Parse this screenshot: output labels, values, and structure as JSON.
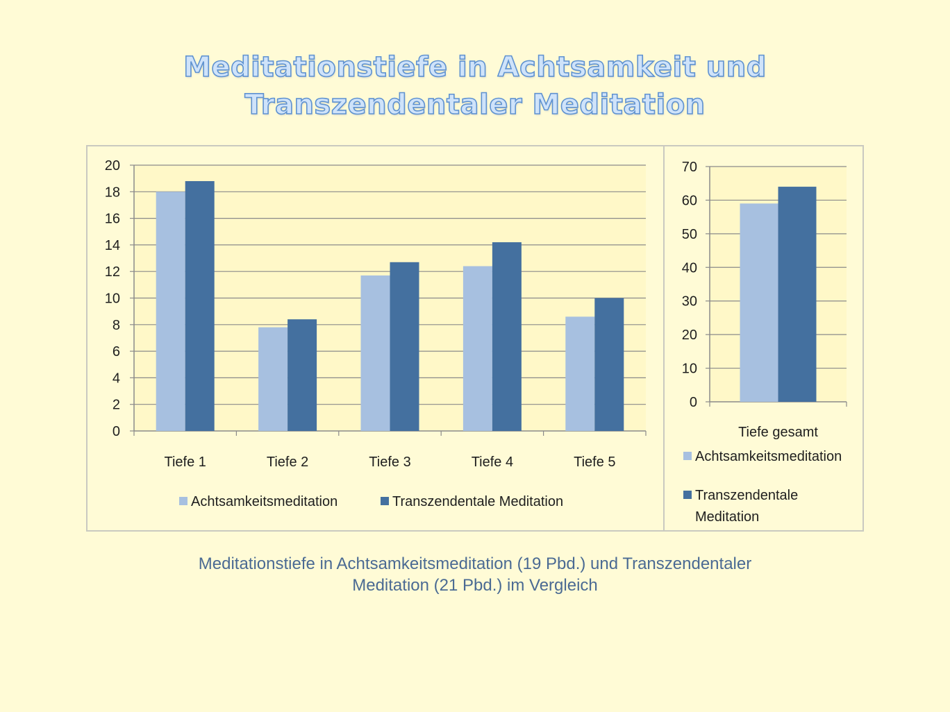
{
  "title": {
    "line1": "Meditationstiefe in Achtsamkeit und",
    "line2": "Transzendentaler Meditation"
  },
  "caption": {
    "line1": "Meditationstiefe in Achtsamkeitsmeditation (19 Pbd.) und Transzendentaler",
    "line2": "Meditation (21 Pbd.) im Vergleich"
  },
  "colors": {
    "background": "#fffbd6",
    "plot_area": "#fff8c8",
    "series_light": "#a7c0e0",
    "series_dark": "#44709f",
    "title_fill": "#cfe3fa",
    "title_outline": "#5f92d0",
    "caption_text": "#4a6a93"
  },
  "chart_data": [
    {
      "type": "bar",
      "categories": [
        "Tiefe 1",
        "Tiefe 2",
        "Tiefe 3",
        "Tiefe 4",
        "Tiefe 5"
      ],
      "series": [
        {
          "name": "Achtsamkeitsmeditation",
          "values": [
            18.0,
            7.8,
            11.7,
            12.4,
            8.6
          ]
        },
        {
          "name": "Transzendentale Meditation",
          "values": [
            18.8,
            8.4,
            12.7,
            14.2,
            10.0
          ]
        }
      ],
      "yticks": [
        "0",
        "2",
        "4",
        "6",
        "8",
        "10",
        "12",
        "14",
        "16",
        "18",
        "20"
      ],
      "ylim": [
        0,
        20
      ],
      "grid": true,
      "legend": "bottom"
    },
    {
      "type": "bar",
      "categories": [
        "Tiefe gesamt"
      ],
      "series": [
        {
          "name": "Achtsamkeitsmeditation",
          "values": [
            59
          ]
        },
        {
          "name": "Transzendentale Meditation",
          "values": [
            64
          ]
        }
      ],
      "yticks": [
        "0",
        "10",
        "20",
        "30",
        "40",
        "50",
        "60",
        "70"
      ],
      "ylim": [
        0,
        70
      ],
      "grid": true,
      "legend": "bottom",
      "legend_labels": [
        [
          "Achtsamkeitsmeditation"
        ],
        [
          "Transzendentale",
          "Meditation"
        ]
      ]
    }
  ]
}
